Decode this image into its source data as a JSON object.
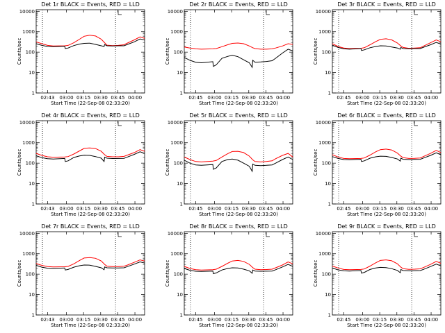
{
  "chart_data": [
    {
      "type": "line",
      "title": "Det 1r BLACK = Events, RED = LLD",
      "xlabel": "Start Time (22-Sep-08 02:33:20)",
      "ylabel": "Counts/sec",
      "x_ticks": [
        "02:43",
        "03:00",
        "03:15",
        "03:30",
        "03:45",
        "04:00"
      ],
      "y_ticks": [
        "1",
        "10",
        "100",
        "1000",
        "10000"
      ],
      "yscale": "log",
      "ylim": [
        1,
        12000
      ],
      "xlim_minutes": [
        0,
        95
      ],
      "series": [
        {
          "color": "#ff0000",
          "x": [
            0,
            5,
            10,
            15,
            25,
            28,
            33,
            38,
            42,
            47,
            52,
            57,
            60,
            62,
            67,
            72,
            77,
            80,
            86,
            91,
            95
          ],
          "y": [
            320,
            260,
            215,
            200,
            205,
            215,
            290,
            430,
            600,
            680,
            620,
            430,
            290,
            220,
            210,
            215,
            230,
            280,
            400,
            560,
            470
          ]
        },
        {
          "color": "#000000",
          "x": [
            0,
            5,
            10,
            15,
            25,
            25.5,
            28,
            33,
            38,
            42,
            47,
            52,
            57,
            59.5,
            60,
            62,
            67,
            72,
            77,
            80,
            86,
            91,
            95
          ],
          "y": [
            260,
            215,
            190,
            185,
            195,
            150,
            160,
            210,
            250,
            270,
            275,
            240,
            205,
            190,
            235,
            205,
            200,
            205,
            205,
            240,
            320,
            440,
            390
          ]
        }
      ]
    },
    {
      "type": "line",
      "title": "Det 2r BLACK = Events, RED = LLD",
      "xlabel": "Start Time (22-Sep-08 02:33:20)",
      "ylabel": "Counts/sec",
      "x_ticks": [
        "02:45",
        "03:00",
        "03:15",
        "03:30",
        "03:45",
        "04:00"
      ],
      "y_ticks": [
        "1",
        "10",
        "100",
        "1000",
        "10000"
      ],
      "yscale": "log",
      "ylim": [
        1,
        12000
      ],
      "xlim_minutes": [
        0,
        95
      ],
      "series": [
        {
          "color": "#ff0000",
          "x": [
            0,
            5,
            10,
            15,
            25,
            28,
            33,
            38,
            42,
            47,
            52,
            57,
            60,
            62,
            67,
            72,
            77,
            80,
            86,
            91,
            95
          ],
          "y": [
            180,
            160,
            145,
            140,
            145,
            150,
            185,
            230,
            270,
            280,
            260,
            200,
            165,
            150,
            140,
            140,
            145,
            160,
            200,
            260,
            240
          ]
        },
        {
          "color": "#000000",
          "x": [
            0,
            5,
            10,
            15,
            25,
            25.5,
            28,
            33,
            38,
            42,
            47,
            52,
            57,
            59.5,
            60,
            62,
            67,
            72,
            77,
            80,
            86,
            91,
            95
          ],
          "y": [
            55,
            40,
            32,
            30,
            34,
            20,
            24,
            50,
            62,
            70,
            60,
            42,
            30,
            18,
            40,
            32,
            33,
            35,
            38,
            50,
            90,
            140,
            115
          ]
        }
      ]
    },
    {
      "type": "line",
      "title": "Det 3r BLACK = Events, RED = LLD",
      "xlabel": "Start Time (22-Sep-08 02:33:20)",
      "ylabel": "Counts/sec",
      "x_ticks": [
        "02:45",
        "03:00",
        "03:15",
        "03:30",
        "03:45",
        "04:00"
      ],
      "y_ticks": [
        "1",
        "10",
        "100",
        "1000",
        "10000"
      ],
      "yscale": "log",
      "ylim": [
        1,
        12000
      ],
      "xlim_minutes": [
        0,
        95
      ],
      "series": [
        {
          "color": "#ff0000",
          "x": [
            0,
            5,
            10,
            15,
            25,
            28,
            33,
            38,
            42,
            47,
            52,
            57,
            60,
            62,
            67,
            72,
            77,
            80,
            86,
            91,
            95
          ],
          "y": [
            260,
            190,
            160,
            150,
            155,
            165,
            230,
            330,
            420,
            450,
            400,
            280,
            200,
            170,
            155,
            160,
            165,
            200,
            290,
            400,
            320
          ]
        },
        {
          "color": "#000000",
          "x": [
            0,
            5,
            10,
            15,
            25,
            25.5,
            28,
            33,
            38,
            42,
            47,
            52,
            57,
            59.5,
            60,
            62,
            67,
            72,
            77,
            80,
            86,
            91,
            95
          ],
          "y": [
            220,
            170,
            145,
            140,
            150,
            120,
            130,
            165,
            190,
            205,
            200,
            180,
            160,
            140,
            170,
            150,
            148,
            150,
            150,
            175,
            230,
            300,
            250
          ]
        }
      ]
    },
    {
      "type": "line",
      "title": "Det 4r BLACK = Events, RED = LLD",
      "xlabel": "Start Time (22-Sep-08 02:33:20)",
      "ylabel": "Counts/sec",
      "x_ticks": [
        "02:43",
        "03:00",
        "03:15",
        "03:30",
        "03:45",
        "04:00"
      ],
      "y_ticks": [
        "1",
        "10",
        "100",
        "1000",
        "10000"
      ],
      "yscale": "log",
      "ylim": [
        1,
        12000
      ],
      "xlim_minutes": [
        0,
        95
      ],
      "series": [
        {
          "color": "#ff0000",
          "x": [
            0,
            5,
            10,
            15,
            25,
            28,
            33,
            38,
            42,
            47,
            52,
            57,
            60,
            62,
            67,
            72,
            77,
            80,
            86,
            91,
            95
          ],
          "y": [
            300,
            240,
            205,
            195,
            200,
            210,
            280,
            400,
            530,
            560,
            520,
            380,
            260,
            215,
            205,
            205,
            215,
            250,
            330,
            460,
            380
          ]
        },
        {
          "color": "#000000",
          "x": [
            0,
            5,
            10,
            15,
            25,
            25.5,
            28,
            33,
            38,
            42,
            47,
            52,
            57,
            59.5,
            60,
            62,
            67,
            72,
            77,
            80,
            86,
            91,
            95
          ],
          "y": [
            230,
            185,
            165,
            160,
            170,
            120,
            130,
            190,
            225,
            245,
            240,
            210,
            175,
            120,
            195,
            175,
            168,
            170,
            172,
            200,
            270,
            360,
            300
          ]
        }
      ]
    },
    {
      "type": "line",
      "title": "Det 5r BLACK = Events, RED = LLD",
      "xlabel": "Start Time (22-Sep-08 02:33:20)",
      "ylabel": "Counts/sec",
      "x_ticks": [
        "02:45",
        "03:00",
        "03:15",
        "03:30",
        "03:45",
        "04:00"
      ],
      "y_ticks": [
        "1",
        "10",
        "100",
        "1000",
        "10000"
      ],
      "yscale": "log",
      "ylim": [
        1,
        12000
      ],
      "xlim_minutes": [
        0,
        95
      ],
      "series": [
        {
          "color": "#ff0000",
          "x": [
            0,
            5,
            10,
            15,
            25,
            28,
            33,
            38,
            42,
            47,
            52,
            57,
            60,
            62,
            67,
            72,
            77,
            80,
            86,
            91,
            95
          ],
          "y": [
            200,
            150,
            120,
            115,
            125,
            135,
            200,
            290,
            370,
            380,
            330,
            220,
            145,
            120,
            115,
            120,
            130,
            165,
            240,
            300,
            200
          ]
        },
        {
          "color": "#000000",
          "x": [
            0,
            5,
            10,
            15,
            25,
            25.5,
            28,
            33,
            38,
            42,
            47,
            52,
            57,
            59.5,
            60,
            62,
            67,
            72,
            77,
            80,
            86,
            91,
            95
          ],
          "y": [
            140,
            100,
            82,
            78,
            85,
            50,
            58,
            120,
            150,
            160,
            140,
            100,
            70,
            40,
            90,
            78,
            76,
            78,
            82,
            100,
            150,
            200,
            150
          ]
        }
      ]
    },
    {
      "type": "line",
      "title": "Det 6r BLACK = Events, RED = LLD",
      "xlabel": "Start Time (22-Sep-08 02:33:20)",
      "ylabel": "Counts/sec",
      "x_ticks": [
        "02:45",
        "03:00",
        "03:15",
        "03:30",
        "03:45",
        "04:00"
      ],
      "y_ticks": [
        "1",
        "10",
        "100",
        "1000",
        "10000"
      ],
      "yscale": "log",
      "ylim": [
        1,
        12000
      ],
      "xlim_minutes": [
        0,
        95
      ],
      "series": [
        {
          "color": "#ff0000",
          "x": [
            0,
            5,
            10,
            15,
            25,
            28,
            33,
            38,
            42,
            47,
            52,
            57,
            60,
            62,
            67,
            72,
            77,
            80,
            86,
            91,
            95
          ],
          "y": [
            260,
            200,
            170,
            165,
            170,
            180,
            250,
            360,
            460,
            490,
            440,
            310,
            220,
            185,
            170,
            172,
            180,
            215,
            300,
            420,
            330
          ]
        },
        {
          "color": "#000000",
          "x": [
            0,
            5,
            10,
            15,
            25,
            25.5,
            28,
            33,
            38,
            42,
            47,
            52,
            57,
            59.5,
            60,
            62,
            67,
            72,
            77,
            80,
            86,
            91,
            95
          ],
          "y": [
            210,
            170,
            150,
            148,
            155,
            120,
            130,
            175,
            205,
            220,
            215,
            190,
            160,
            125,
            175,
            155,
            150,
            152,
            155,
            180,
            240,
            320,
            260
          ]
        }
      ]
    },
    {
      "type": "line",
      "title": "Det 7r BLACK = Events, RED = LLD",
      "xlabel": "Start Time (22-Sep-08 02:33:20)",
      "ylabel": "Counts/sec",
      "x_ticks": [
        "02:43",
        "03:00",
        "03:15",
        "03:30",
        "03:45",
        "04:00"
      ],
      "y_ticks": [
        "1",
        "10",
        "100",
        "1000",
        "10000"
      ],
      "yscale": "log",
      "ylim": [
        1,
        12000
      ],
      "xlim_minutes": [
        0,
        95
      ],
      "series": [
        {
          "color": "#ff0000",
          "x": [
            0,
            5,
            10,
            15,
            25,
            28,
            33,
            38,
            42,
            47,
            52,
            57,
            60,
            62,
            67,
            72,
            77,
            80,
            86,
            91,
            95
          ],
          "y": [
            330,
            270,
            235,
            225,
            230,
            240,
            320,
            470,
            620,
            650,
            600,
            440,
            300,
            245,
            235,
            235,
            245,
            280,
            380,
            500,
            440
          ]
        },
        {
          "color": "#000000",
          "x": [
            0,
            5,
            10,
            15,
            25,
            25.5,
            28,
            33,
            38,
            42,
            47,
            52,
            57,
            59.5,
            60,
            62,
            67,
            72,
            77,
            80,
            86,
            91,
            95
          ],
          "y": [
            270,
            220,
            195,
            190,
            200,
            160,
            170,
            220,
            260,
            280,
            275,
            240,
            205,
            165,
            225,
            205,
            200,
            202,
            205,
            235,
            310,
            400,
            350
          ]
        }
      ]
    },
    {
      "type": "line",
      "title": "Det 8r BLACK = Events, RED = LLD",
      "xlabel": "Start Time (22-Sep-08 02:33:20)",
      "ylabel": "Counts/sec",
      "x_ticks": [
        "02:45",
        "03:00",
        "03:15",
        "03:30",
        "03:45",
        "04:00"
      ],
      "y_ticks": [
        "1",
        "10",
        "100",
        "1000",
        "10000"
      ],
      "yscale": "log",
      "ylim": [
        1,
        12000
      ],
      "xlim_minutes": [
        0,
        95
      ],
      "series": [
        {
          "color": "#ff0000",
          "x": [
            0,
            5,
            10,
            15,
            25,
            28,
            33,
            38,
            42,
            47,
            52,
            57,
            60,
            62,
            67,
            72,
            77,
            80,
            86,
            91,
            95
          ],
          "y": [
            240,
            190,
            165,
            160,
            165,
            175,
            240,
            340,
            440,
            470,
            420,
            300,
            210,
            175,
            165,
            168,
            175,
            205,
            280,
            400,
            320
          ]
        },
        {
          "color": "#000000",
          "x": [
            0,
            5,
            10,
            15,
            25,
            25.5,
            28,
            33,
            38,
            42,
            47,
            52,
            57,
            59.5,
            60,
            62,
            67,
            72,
            77,
            80,
            86,
            91,
            95
          ],
          "y": [
            190,
            155,
            138,
            135,
            142,
            105,
            115,
            160,
            190,
            205,
            200,
            175,
            145,
            110,
            160,
            142,
            138,
            140,
            142,
            165,
            225,
            300,
            240
          ]
        }
      ]
    },
    {
      "type": "line",
      "title": "Det 9r BLACK = Events, RED = LLD",
      "xlabel": "Start Time (22-Sep-08 02:33:20)",
      "ylabel": "Counts/sec",
      "x_ticks": [
        "02:45",
        "03:00",
        "03:15",
        "03:30",
        "03:45",
        "04:00"
      ],
      "y_ticks": [
        "1",
        "10",
        "100",
        "1000",
        "10000"
      ],
      "yscale": "log",
      "ylim": [
        1,
        12000
      ],
      "xlim_minutes": [
        0,
        95
      ],
      "series": [
        {
          "color": "#ff0000",
          "x": [
            0,
            5,
            10,
            15,
            25,
            28,
            33,
            38,
            42,
            47,
            52,
            57,
            60,
            62,
            67,
            72,
            77,
            80,
            86,
            91,
            95
          ],
          "y": [
            250,
            200,
            170,
            165,
            170,
            180,
            250,
            360,
            470,
            500,
            450,
            320,
            220,
            185,
            172,
            175,
            182,
            215,
            300,
            420,
            340
          ]
        },
        {
          "color": "#000000",
          "x": [
            0,
            5,
            10,
            15,
            25,
            25.5,
            28,
            33,
            38,
            42,
            47,
            52,
            57,
            59.5,
            60,
            62,
            67,
            72,
            77,
            80,
            86,
            91,
            95
          ],
          "y": [
            200,
            162,
            145,
            142,
            150,
            112,
            122,
            170,
            200,
            215,
            210,
            185,
            152,
            118,
            168,
            150,
            145,
            147,
            150,
            172,
            235,
            310,
            255
          ]
        }
      ]
    }
  ]
}
